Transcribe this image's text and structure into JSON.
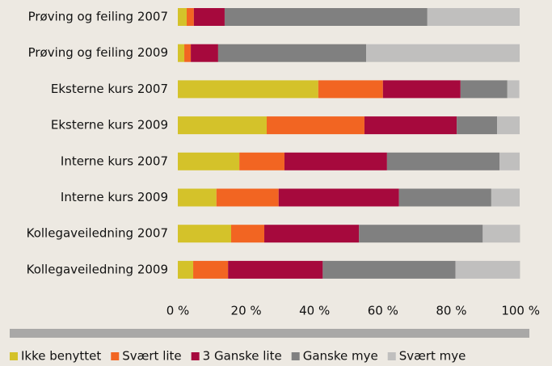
{
  "chart_data": {
    "type": "stacked-barh",
    "categories": [
      "Prøving og feiling 2007",
      "Prøving og feiling 2009",
      "Eksterne kurs 2007",
      "Eksterne kurs 2009",
      "Interne kurs 2007",
      "Interne kurs 2009",
      "Kollegaveiledning 2007",
      "Kollegaveiledning 2009"
    ],
    "series": [
      {
        "name": "Ikke benyttet",
        "color": "#d4c22a",
        "values": [
          2.6,
          1.9,
          41.1,
          26.0,
          18.0,
          11.3,
          15.6,
          4.5
        ]
      },
      {
        "name": "Svært lite",
        "color": "#f26522",
        "values": [
          2.1,
          1.9,
          18.9,
          28.6,
          13.2,
          18.2,
          9.7,
          10.2
        ]
      },
      {
        "name": "3 Ganske lite",
        "color": "#a6093d",
        "values": [
          9.0,
          8.0,
          22.7,
          27.0,
          30.0,
          35.2,
          27.7,
          27.7
        ]
      },
      {
        "name": "Ganske mye",
        "color": "#808080",
        "values": [
          59.3,
          43.3,
          13.7,
          11.8,
          32.9,
          27.0,
          36.2,
          38.8
        ]
      },
      {
        "name": "Svært mye",
        "color": "#c0bfbe",
        "values": [
          27.0,
          44.9,
          3.5,
          6.6,
          5.9,
          8.3,
          10.9,
          18.9
        ]
      }
    ],
    "xlim": [
      0,
      100
    ],
    "xticks": [
      {
        "value": 0,
        "label": "0 %"
      },
      {
        "value": 20,
        "label": "20 %"
      },
      {
        "value": 40,
        "label": "40 %"
      },
      {
        "value": 60,
        "label": "60 %"
      },
      {
        "value": 80,
        "label": "80 %"
      },
      {
        "value": 100,
        "label": "100 %"
      }
    ],
    "legend": "bottom"
  }
}
